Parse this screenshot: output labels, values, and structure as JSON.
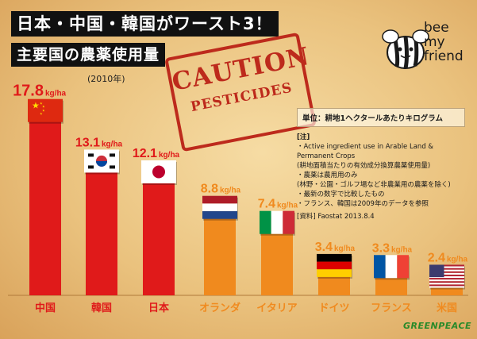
{
  "title": {
    "line1": "日本・中国・韓国がワースト3！",
    "line2": "主要国の農薬使用量",
    "year": "(2010年)"
  },
  "stamp": {
    "line1": "CAUTION",
    "line2": "PESTICIDES"
  },
  "logo": {
    "line1": "bee",
    "line2": "my",
    "line3": "friend",
    "icon": "bee-icon"
  },
  "notes": {
    "unit": "単位：耕地1ヘクタールあたりキログラム",
    "header": "[注]",
    "items": [
      "・Active ingredient use in Arable Land &",
      "  Permanent Crops",
      "  (耕地面積当たりの有効成分換算農薬使用量)",
      "・農薬は農用用のみ",
      "  (林野・公園・ゴルフ場など非農業用の農薬を除く)",
      "・最新の数字で比較したもの",
      "・フランス、韓国は2009年のデータを参照"
    ],
    "source": "[資料] Faostat 2013.8.4"
  },
  "colors": {
    "red": "#e01a1a",
    "orange": "#f08a1e",
    "title_bg": "#111111"
  },
  "chart_data": {
    "type": "bar",
    "unit": "kg/ha",
    "categories": [
      "中国",
      "韓国",
      "日本",
      "オランダ",
      "イタリア",
      "ドイツ",
      "フランス",
      "米国"
    ],
    "values": [
      17.8,
      13.1,
      12.1,
      8.8,
      7.4,
      3.4,
      3.3,
      2.4
    ],
    "value_labels": [
      "17.8",
      "13.1",
      "12.1",
      "8.8",
      "7.4",
      "3.4",
      "3.3",
      "2.4"
    ],
    "bar_colors": [
      "red",
      "red",
      "red",
      "orange",
      "orange",
      "orange",
      "orange",
      "orange"
    ],
    "flags": [
      "china-flag",
      "korea-flag",
      "japan-flag",
      "netherlands-flag",
      "italy-flag",
      "germany-flag",
      "france-flag",
      "usa-flag"
    ],
    "ylim": [
      0,
      18
    ]
  },
  "footer": {
    "brand": "GREENPEACE"
  }
}
